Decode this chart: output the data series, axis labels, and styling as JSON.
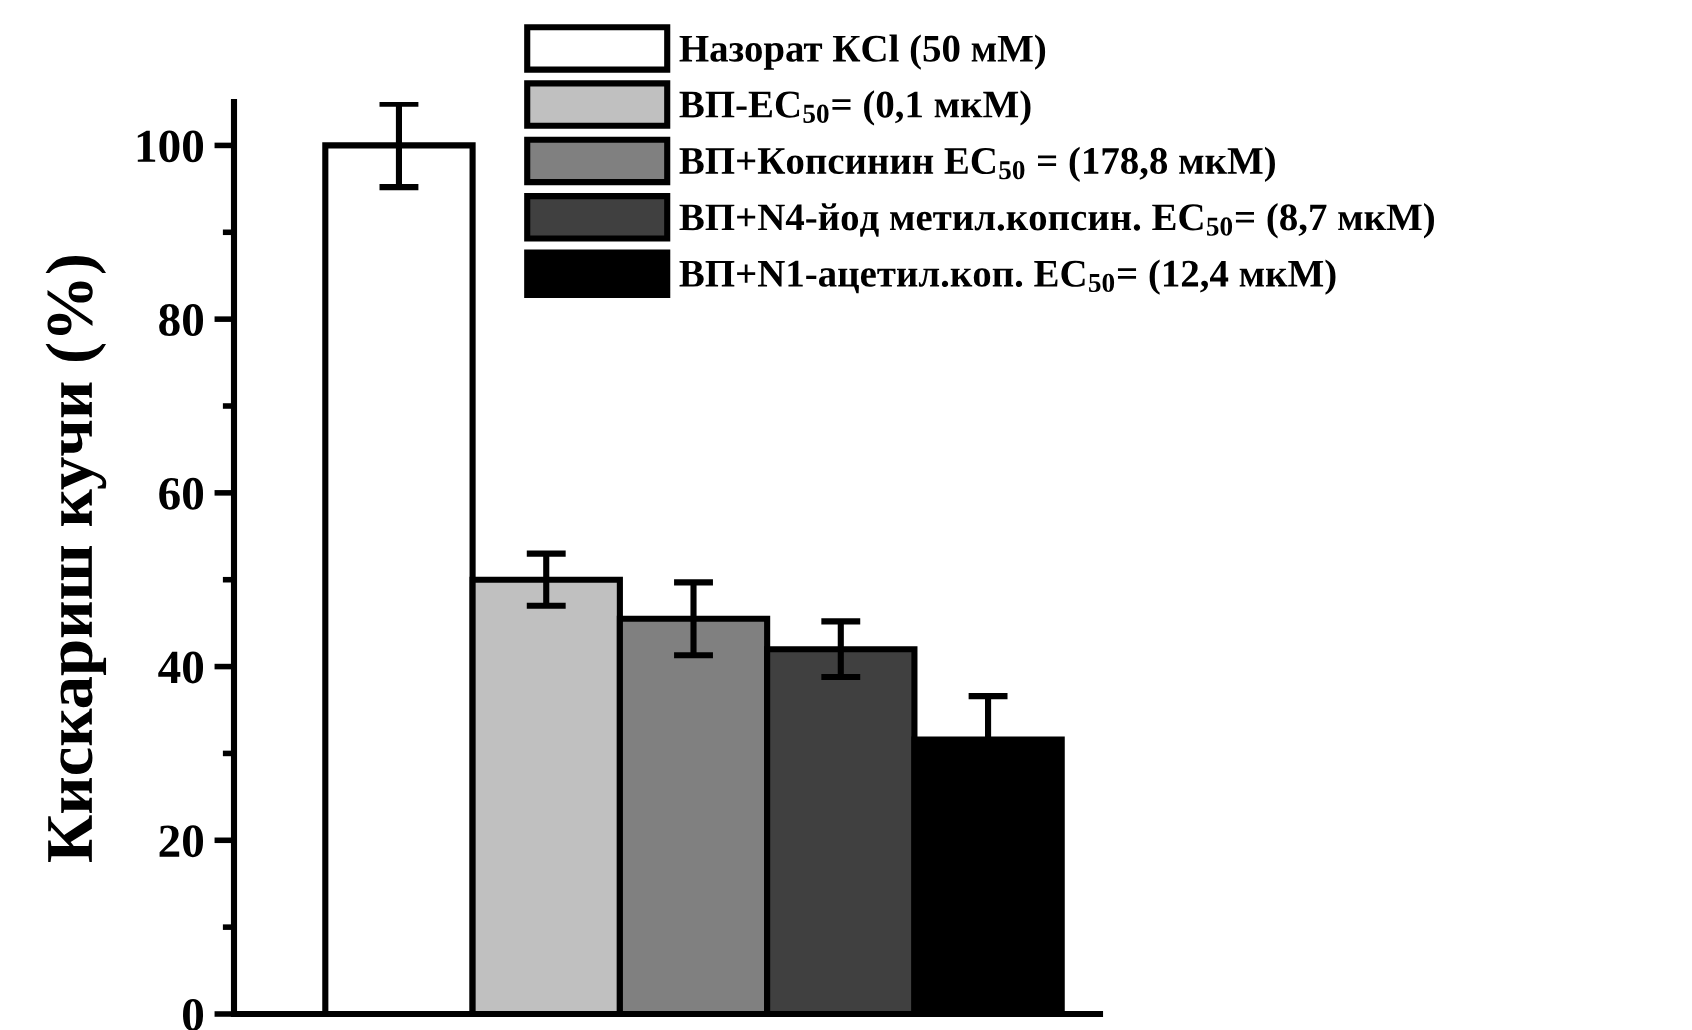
{
  "chart_data": {
    "type": "bar",
    "ylabel": "Кискариш кучи (%)",
    "categories": [
      null,
      null,
      null,
      null,
      null
    ],
    "series": [
      {
        "name": "Назорат КCl (50 мМ)",
        "color": "#ffffff",
        "values": [
          100,
          null,
          null,
          null,
          null
        ],
        "errors": [
          4.8,
          null,
          null,
          null,
          null
        ]
      },
      {
        "name": "ВП-EC$_{50}$= (0,1 мкМ)",
        "color": "#c0c0c0",
        "values": [
          null,
          50,
          null,
          null,
          null
        ],
        "errors": [
          null,
          3,
          null,
          null,
          null
        ]
      },
      {
        "name": "ВП+Копсинин EC$_{50}$ = (178,8 мкМ)",
        "color": "#808080",
        "values": [
          null,
          null,
          45.5,
          null,
          null
        ],
        "errors": [
          null,
          null,
          4.2,
          null,
          null
        ]
      },
      {
        "name": "ВП+N4-йод метил.копсин. EC$_{50}$= (8,7 мкМ)",
        "color": "#404040",
        "values": [
          null,
          null,
          null,
          42,
          null
        ],
        "errors": [
          null,
          null,
          null,
          3.2,
          null
        ]
      },
      {
        "name": "ВП+N1-ацетил.коп. EC$_{50}$= (12,4 мкМ)",
        "color": "#000000",
        "values": [
          null,
          null,
          null,
          null,
          31.6
        ],
        "errors": [
          null,
          null,
          null,
          null,
          5
        ]
      }
    ],
    "ylim": [
      0,
      105
    ],
    "yticks": [
      0,
      {
        "value": 10,
        "label": null
      },
      20,
      {
        "value": 30,
        "label": null
      },
      40,
      {
        "value": 50,
        "label": null
      },
      60,
      {
        "value": 70,
        "label": null
      },
      80,
      {
        "value": 90,
        "label": null
      },
      100
    ],
    "grid": false,
    "legend": "top right"
  }
}
